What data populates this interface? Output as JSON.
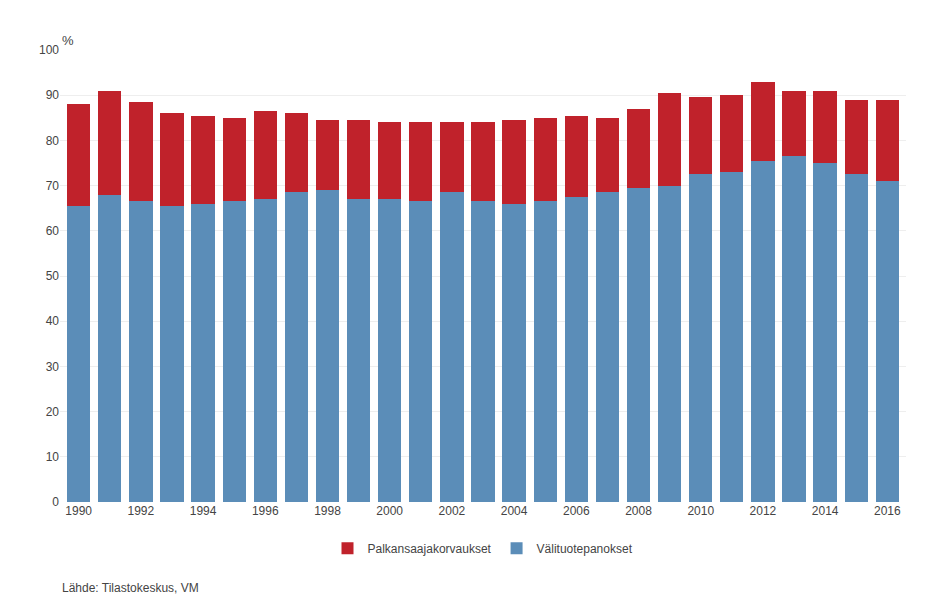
{
  "chart_data": {
    "type": "bar",
    "stacked": true,
    "categories": [
      "1990",
      null,
      "1992",
      null,
      "1994",
      null,
      "1996",
      null,
      "1998",
      null,
      "2000",
      null,
      "2002",
      null,
      "2004",
      null,
      "2006",
      null,
      "2008",
      null,
      "2010",
      null,
      "2012",
      null,
      "2014",
      null,
      "2016"
    ],
    "series": [
      {
        "name": "Välituotepanokset",
        "color": "#5B8DB8",
        "values": [
          65.5,
          68.0,
          66.5,
          65.5,
          66.0,
          66.5,
          67.0,
          68.5,
          69.0,
          67.0,
          67.0,
          66.5,
          68.5,
          66.5,
          66.0,
          66.5,
          67.5,
          68.5,
          69.5,
          70.0,
          72.5,
          73.0,
          75.5,
          76.5,
          75.0,
          72.5,
          71.0
        ]
      },
      {
        "name": "Palkansaajakorvaukset",
        "color": "#C0222B",
        "values": [
          22.5,
          23.0,
          22.0,
          20.5,
          19.5,
          18.5,
          19.5,
          17.5,
          15.5,
          17.5,
          17.0,
          17.5,
          15.5,
          17.5,
          18.5,
          18.5,
          18.0,
          16.5,
          17.5,
          20.5,
          17.0,
          17.0,
          17.5,
          14.5,
          16.0,
          16.5,
          18.0
        ]
      }
    ],
    "ylabel": "%",
    "ylim": [
      0,
      100
    ],
    "yticks": [
      0,
      10,
      20,
      30,
      40,
      50,
      60,
      70,
      80,
      90,
      100
    ],
    "grid": true,
    "legend": "bottom",
    "annotations": [
      "Lähde: Tilastokeskus, VM"
    ]
  }
}
